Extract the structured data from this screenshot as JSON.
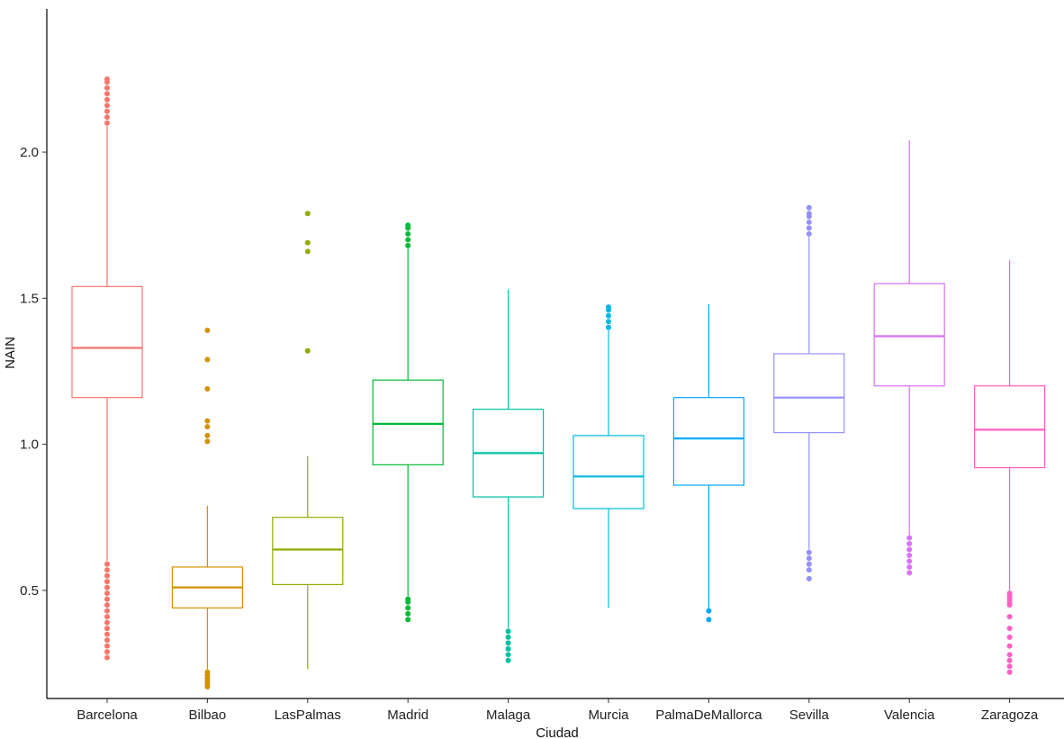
{
  "chart_data": {
    "type": "boxplot",
    "xlabel": "Ciudad",
    "ylabel": "NAIN",
    "ylim": [
      0.13,
      2.49
    ],
    "y_ticks": [
      {
        "value": 0.5,
        "label": "0.5"
      },
      {
        "value": 1.0,
        "label": "1.0"
      },
      {
        "value": 1.5,
        "label": "1.5"
      },
      {
        "value": 2.0,
        "label": "2.0"
      }
    ],
    "grid": false,
    "legend": "none",
    "categories": [
      "Barcelona",
      "Bilbao",
      "LasPalmas",
      "Madrid",
      "Malaga",
      "Murcia",
      "PalmaDeMallorca",
      "Sevilla",
      "Valencia",
      "Zaragoza"
    ],
    "boxes": [
      {
        "category": "Barcelona",
        "color": "#F8766D",
        "whisker_low": 0.6,
        "q1": 1.16,
        "median": 1.33,
        "q3": 1.54,
        "whisker_high": 2.09,
        "outliers": [
          0.27,
          0.29,
          0.31,
          0.33,
          0.35,
          0.37,
          0.39,
          0.41,
          0.43,
          0.45,
          0.47,
          0.49,
          0.51,
          0.53,
          0.55,
          0.57,
          0.59,
          2.1,
          2.12,
          2.14,
          2.16,
          2.18,
          2.2,
          2.22,
          2.24,
          2.25
        ]
      },
      {
        "category": "Bilbao",
        "color": "#D39200",
        "whisker_low": 0.23,
        "q1": 0.44,
        "median": 0.51,
        "q3": 0.58,
        "whisker_high": 0.79,
        "outliers": [
          0.17,
          0.18,
          0.19,
          0.2,
          0.21,
          0.22,
          1.01,
          1.03,
          1.06,
          1.08,
          1.19,
          1.29,
          1.39
        ]
      },
      {
        "category": "LasPalmas",
        "color": "#93AA00",
        "whisker_low": 0.23,
        "q1": 0.52,
        "median": 0.64,
        "q3": 0.75,
        "whisker_high": 0.96,
        "outliers": [
          1.32,
          1.66,
          1.69,
          1.79
        ]
      },
      {
        "category": "Madrid",
        "color": "#00BA38",
        "whisker_low": 0.48,
        "q1": 0.93,
        "median": 1.07,
        "q3": 1.22,
        "whisker_high": 1.67,
        "outliers": [
          0.4,
          0.42,
          0.44,
          0.46,
          0.47,
          1.68,
          1.7,
          1.72,
          1.74,
          1.75
        ]
      },
      {
        "category": "Malaga",
        "color": "#00C19F",
        "whisker_low": 0.37,
        "q1": 0.82,
        "median": 0.97,
        "q3": 1.12,
        "whisker_high": 1.53,
        "outliers": [
          0.26,
          0.28,
          0.3,
          0.32,
          0.34,
          0.36
        ]
      },
      {
        "category": "Murcia",
        "color": "#00B9E3",
        "whisker_low": 0.44,
        "q1": 0.78,
        "median": 0.89,
        "q3": 1.03,
        "whisker_high": 1.39,
        "outliers": [
          1.4,
          1.42,
          1.44,
          1.46,
          1.47
        ]
      },
      {
        "category": "PalmaDeMallorca",
        "color": "#00A9FF",
        "whisker_low": 0.43,
        "q1": 0.86,
        "median": 1.02,
        "q3": 1.16,
        "whisker_high": 1.48,
        "outliers": [
          0.4,
          0.43
        ]
      },
      {
        "category": "Sevilla",
        "color": "#9590FF",
        "whisker_low": 0.64,
        "q1": 1.04,
        "median": 1.16,
        "q3": 1.31,
        "whisker_high": 1.71,
        "outliers": [
          0.54,
          0.57,
          0.59,
          0.61,
          0.63,
          1.72,
          1.74,
          1.76,
          1.78,
          1.79,
          1.81
        ]
      },
      {
        "category": "Valencia",
        "color": "#DB72FB",
        "whisker_low": 0.69,
        "q1": 1.2,
        "median": 1.37,
        "q3": 1.55,
        "whisker_high": 2.04,
        "outliers": [
          0.56,
          0.58,
          0.6,
          0.62,
          0.64,
          0.66,
          0.68
        ]
      },
      {
        "category": "Zaragoza",
        "color": "#FF61C3",
        "whisker_low": 0.5,
        "q1": 0.92,
        "median": 1.05,
        "q3": 1.2,
        "whisker_high": 1.63,
        "outliers": [
          0.22,
          0.24,
          0.26,
          0.28,
          0.31,
          0.34,
          0.37,
          0.41,
          0.45,
          0.46,
          0.47,
          0.48,
          0.49
        ]
      }
    ]
  }
}
